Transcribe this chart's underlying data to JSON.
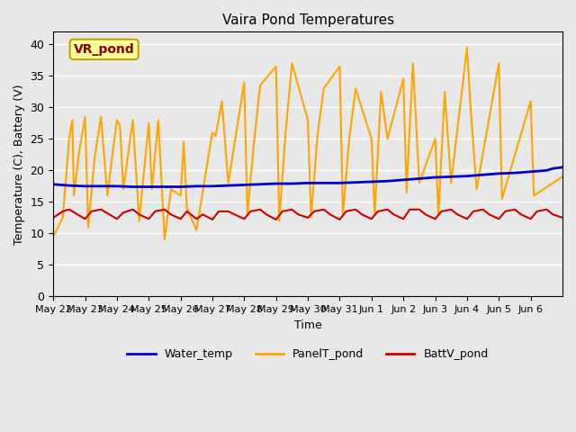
{
  "title": "Vaira Pond Temperatures",
  "xlabel": "Time",
  "ylabel": "Temperature (C), Battery (V)",
  "ylim": [
    0,
    42
  ],
  "yticks": [
    0,
    5,
    10,
    15,
    20,
    25,
    30,
    35,
    40
  ],
  "background_color": "#e8e8e8",
  "plot_bg_color": "#e8e8e8",
  "grid_color": "#ffffff",
  "annotation_text": "VR_pond",
  "annotation_text_color": "#8b0000",
  "annotation_box_color": "#ffff99",
  "annotation_box_edge": "#c8a000",
  "water_temp_color": "#0000cc",
  "panel_temp_color": "#ffa500",
  "batt_color": "#cc0000",
  "legend_labels": [
    "Water_temp",
    "PanelT_pond",
    "BattV_pond"
  ],
  "water_temp_data": [
    [
      0,
      17.8
    ],
    [
      0.5,
      17.6
    ],
    [
      1,
      17.5
    ],
    [
      1.5,
      17.5
    ],
    [
      2,
      17.5
    ],
    [
      2.5,
      17.4
    ],
    [
      3,
      17.4
    ],
    [
      3.5,
      17.4
    ],
    [
      4,
      17.4
    ],
    [
      4.5,
      17.5
    ],
    [
      5,
      17.5
    ],
    [
      5.5,
      17.6
    ],
    [
      6,
      17.7
    ],
    [
      6.5,
      17.8
    ],
    [
      7,
      17.9
    ],
    [
      7.5,
      17.9
    ],
    [
      8,
      18.0
    ],
    [
      8.5,
      18.0
    ],
    [
      9,
      18.0
    ],
    [
      9.5,
      18.1
    ],
    [
      10,
      18.2
    ],
    [
      10.5,
      18.3
    ],
    [
      11,
      18.5
    ],
    [
      11.5,
      18.7
    ],
    [
      12,
      18.9
    ],
    [
      12.5,
      19.0
    ],
    [
      13,
      19.1
    ],
    [
      13.5,
      19.3
    ],
    [
      14,
      19.5
    ],
    [
      14.5,
      19.6
    ],
    [
      15,
      19.8
    ],
    [
      15.5,
      20.0
    ],
    [
      15.7,
      20.3
    ],
    [
      16,
      20.5
    ]
  ],
  "panel_temp_data": [
    [
      0,
      9.5
    ],
    [
      0.3,
      12.5
    ],
    [
      0.5,
      25.0
    ],
    [
      0.6,
      28.0
    ],
    [
      0.65,
      16.0
    ],
    [
      0.8,
      22.5
    ],
    [
      1.0,
      28.5
    ],
    [
      1.1,
      11.0
    ],
    [
      1.3,
      22.0
    ],
    [
      1.5,
      28.5
    ],
    [
      1.7,
      16.0
    ],
    [
      2.0,
      28.0
    ],
    [
      2.1,
      27.0
    ],
    [
      2.2,
      17.0
    ],
    [
      2.5,
      28.0
    ],
    [
      2.7,
      12.0
    ],
    [
      3.0,
      27.5
    ],
    [
      3.1,
      17.0
    ],
    [
      3.3,
      28.0
    ],
    [
      3.5,
      9.0
    ],
    [
      3.7,
      17.0
    ],
    [
      4.0,
      16.0
    ],
    [
      4.1,
      24.5
    ],
    [
      4.2,
      14.0
    ],
    [
      4.5,
      10.5
    ],
    [
      5.0,
      26.0
    ],
    [
      5.1,
      25.5
    ],
    [
      5.3,
      31.0
    ],
    [
      5.5,
      18.0
    ],
    [
      6.0,
      34.0
    ],
    [
      6.1,
      13.0
    ],
    [
      6.3,
      24.0
    ],
    [
      6.5,
      33.5
    ],
    [
      7.0,
      36.5
    ],
    [
      7.1,
      12.0
    ],
    [
      7.3,
      26.0
    ],
    [
      7.5,
      37.0
    ],
    [
      8.0,
      28.0
    ],
    [
      8.1,
      12.5
    ],
    [
      8.3,
      25.5
    ],
    [
      8.5,
      33.0
    ],
    [
      9.0,
      36.5
    ],
    [
      9.1,
      13.0
    ],
    [
      9.3,
      25.0
    ],
    [
      9.5,
      33.0
    ],
    [
      10.0,
      25.0
    ],
    [
      10.1,
      13.0
    ],
    [
      10.3,
      32.5
    ],
    [
      10.5,
      25.0
    ],
    [
      11.0,
      34.5
    ],
    [
      11.1,
      16.5
    ],
    [
      11.3,
      37.0
    ],
    [
      11.5,
      18.0
    ],
    [
      12.0,
      25.0
    ],
    [
      12.1,
      13.0
    ],
    [
      12.3,
      32.5
    ],
    [
      12.5,
      18.0
    ],
    [
      13.0,
      39.5
    ],
    [
      13.1,
      31.0
    ],
    [
      13.3,
      17.0
    ],
    [
      14.0,
      37.0
    ],
    [
      14.1,
      15.5
    ],
    [
      15.0,
      31.0
    ],
    [
      15.1,
      16.0
    ],
    [
      16.0,
      19.0
    ]
  ],
  "batt_data": [
    [
      0,
      12.5
    ],
    [
      0.3,
      13.5
    ],
    [
      0.5,
      13.8
    ],
    [
      0.7,
      13.2
    ],
    [
      1.0,
      12.3
    ],
    [
      1.2,
      13.5
    ],
    [
      1.5,
      13.8
    ],
    [
      1.7,
      13.2
    ],
    [
      2.0,
      12.3
    ],
    [
      2.2,
      13.3
    ],
    [
      2.5,
      13.8
    ],
    [
      2.7,
      13.0
    ],
    [
      3.0,
      12.3
    ],
    [
      3.2,
      13.5
    ],
    [
      3.5,
      13.8
    ],
    [
      3.7,
      13.0
    ],
    [
      4.0,
      12.3
    ],
    [
      4.2,
      13.5
    ],
    [
      4.5,
      12.3
    ],
    [
      4.7,
      13.0
    ],
    [
      5.0,
      12.2
    ],
    [
      5.2,
      13.5
    ],
    [
      5.5,
      13.5
    ],
    [
      5.7,
      13.0
    ],
    [
      6.0,
      12.3
    ],
    [
      6.2,
      13.5
    ],
    [
      6.5,
      13.8
    ],
    [
      6.7,
      13.0
    ],
    [
      7.0,
      12.2
    ],
    [
      7.2,
      13.5
    ],
    [
      7.5,
      13.8
    ],
    [
      7.7,
      13.0
    ],
    [
      8.0,
      12.5
    ],
    [
      8.2,
      13.5
    ],
    [
      8.5,
      13.8
    ],
    [
      8.7,
      13.0
    ],
    [
      9.0,
      12.2
    ],
    [
      9.2,
      13.5
    ],
    [
      9.5,
      13.8
    ],
    [
      9.7,
      13.0
    ],
    [
      10.0,
      12.3
    ],
    [
      10.2,
      13.5
    ],
    [
      10.5,
      13.8
    ],
    [
      10.7,
      13.0
    ],
    [
      11.0,
      12.3
    ],
    [
      11.2,
      13.8
    ],
    [
      11.5,
      13.8
    ],
    [
      11.7,
      13.0
    ],
    [
      12.0,
      12.3
    ],
    [
      12.2,
      13.5
    ],
    [
      12.5,
      13.8
    ],
    [
      12.7,
      13.0
    ],
    [
      13.0,
      12.3
    ],
    [
      13.2,
      13.5
    ],
    [
      13.5,
      13.8
    ],
    [
      13.7,
      13.0
    ],
    [
      14.0,
      12.3
    ],
    [
      14.2,
      13.5
    ],
    [
      14.5,
      13.8
    ],
    [
      14.7,
      13.0
    ],
    [
      15.0,
      12.3
    ],
    [
      15.2,
      13.5
    ],
    [
      15.5,
      13.8
    ],
    [
      15.7,
      13.0
    ],
    [
      16.0,
      12.5
    ]
  ],
  "xtick_labels": [
    "May 22",
    "May 23",
    "May 24",
    "May 25",
    "May 26",
    "May 27",
    "May 28",
    "May 29",
    "May 30",
    "May 31",
    "Jun 1",
    "Jun 2",
    "Jun 3",
    "Jun 4",
    "Jun 5",
    "Jun 6"
  ],
  "xtick_positions": [
    0,
    1,
    2,
    3,
    4,
    5,
    6,
    7,
    8,
    9,
    10,
    11,
    12,
    13,
    14,
    15
  ]
}
